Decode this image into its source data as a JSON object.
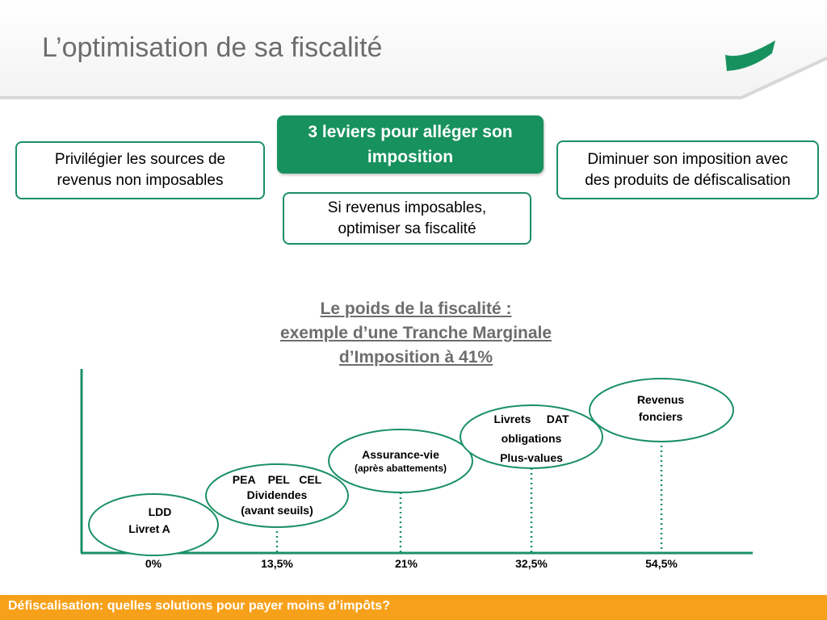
{
  "slide": {
    "title": "L’optimisation de sa fiscalité",
    "footer": "Défiscalisation: quelles solutions pour payer moins d’impôts?"
  },
  "levers": {
    "main": [
      "3 leviers pour alléger son",
      "imposition"
    ],
    "left": [
      "Privilégier les sources de",
      "revenus non imposables"
    ],
    "right": [
      "Diminuer son imposition avec",
      "des produits de défiscalisation"
    ],
    "center": [
      "Si revenus imposables,",
      "optimiser sa fiscalité"
    ]
  },
  "chart_data": {
    "type": "diagram",
    "title": [
      "Le poids de la fiscalité :",
      "exemple d’une Tranche Marginale",
      "d’Imposition à 41%"
    ],
    "categories": [
      "0%",
      "13,5%",
      "21%",
      "32,5%",
      "54,5%"
    ],
    "groups": [
      {
        "rate": "0%",
        "items": [
          "LDD",
          "Livret A"
        ]
      },
      {
        "rate": "13,5%",
        "items": [
          "PEA    PEL   CEL",
          "Dividendes",
          "(avant seuils)"
        ]
      },
      {
        "rate": "21%",
        "items": [
          "Assurance-vie",
          "(après abattements)"
        ]
      },
      {
        "rate": "32,5%",
        "items": [
          "Livrets     DAT",
          "obligations",
          "Plus-values"
        ]
      },
      {
        "rate": "54,5%",
        "items": [
          "Revenus",
          "fonciers"
        ]
      }
    ],
    "colors": {
      "outline": "#1a9064",
      "axis": "#1a9064",
      "footer": "#f7a11a"
    }
  }
}
